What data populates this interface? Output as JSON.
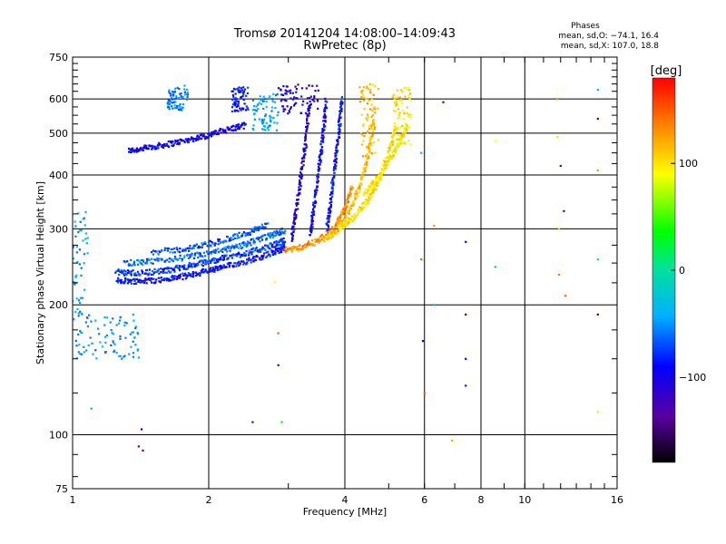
{
  "title": "Tromsø 20141204 14:08:00–14:09:43",
  "subtitle": "RwPretec (8p)",
  "stats": {
    "header": "Phases",
    "line_o": "mean, sd,O: −74.1, 16.4",
    "line_x": "mean, sd,X: 107.0, 18.8"
  },
  "colorbar": {
    "unit_label": "[deg]",
    "tick_labels": [
      "100",
      "0",
      "−100"
    ],
    "tick_values": [
      100,
      0,
      -100
    ],
    "range": [
      -180,
      180
    ]
  },
  "chart_data": {
    "type": "scatter",
    "title": "Tromsø 20141204 14:08:00–14:09:43",
    "subtitle": "RwPretec (8p)",
    "xlabel": "Frequency [MHz]",
    "ylabel": "Stationary phase Virtual Height [km]",
    "x_scale": "log",
    "y_scale": "log",
    "xlim": [
      1,
      16
    ],
    "ylim": [
      75,
      750
    ],
    "x_ticks": [
      1,
      2,
      4,
      6,
      8,
      10,
      16
    ],
    "x_tick_labels": [
      "1",
      "2",
      "4",
      "6",
      "8",
      "10",
      "16"
    ],
    "y_ticks": [
      75,
      100,
      200,
      300,
      400,
      500,
      600,
      750
    ],
    "y_tick_labels": [
      "75",
      "100",
      "200",
      "300",
      "400",
      "500",
      "600",
      "750"
    ],
    "grid": true,
    "color_variable": "phase (deg)",
    "color_range": [
      -180,
      180
    ],
    "traces": [
      {
        "x": [
          1.33,
          1.45,
          1.6,
          1.8,
          2.0,
          2.2,
          2.42
        ],
        "y": [
          455,
          462,
          470,
          482,
          495,
          510,
          522
        ],
        "phase": -98
      },
      {
        "x": [
          1.25,
          1.4,
          1.6,
          1.8,
          2.0,
          2.2,
          2.5,
          2.8,
          2.95
        ],
        "y": [
          228,
          227,
          229,
          234,
          240,
          246,
          255,
          265,
          272
        ],
        "phase": -88
      },
      {
        "x": [
          1.25,
          1.4,
          1.6,
          1.8,
          2.0,
          2.2,
          2.5,
          2.8,
          2.95
        ],
        "y": [
          238,
          237,
          240,
          246,
          252,
          258,
          266,
          276,
          282
        ],
        "phase": -75
      },
      {
        "x": [
          1.3,
          1.5,
          1.8,
          2.1,
          2.4,
          2.7,
          2.95
        ],
        "y": [
          250,
          252,
          258,
          266,
          276,
          288,
          298
        ],
        "phase": -62
      },
      {
        "x": [
          1.5,
          1.8,
          2.1,
          2.4,
          2.7
        ],
        "y": [
          265,
          270,
          280,
          292,
          306
        ],
        "phase": -70
      },
      {
        "x": [
          2.95,
          3.2,
          3.5,
          3.8,
          4.0,
          4.15
        ],
        "y": [
          268,
          272,
          282,
          302,
          335,
          378
        ],
        "phase": 130
      },
      {
        "x": [
          3.6,
          3.85,
          4.1,
          4.3,
          4.5,
          4.65
        ],
        "y": [
          282,
          298,
          330,
          375,
          440,
          540
        ],
        "phase": 112
      },
      {
        "x": [
          3.9,
          4.2,
          4.5,
          4.75,
          5.0,
          5.2
        ],
        "y": [
          300,
          320,
          350,
          390,
          450,
          520
        ],
        "phase": 100
      },
      {
        "x": [
          4.4,
          4.7,
          5.0,
          5.3,
          5.5
        ],
        "y": [
          360,
          390,
          430,
          480,
          520
        ],
        "phase": 95
      },
      {
        "x": [
          3.05,
          3.12,
          3.2,
          3.28,
          3.34
        ],
        "y": [
          285,
          330,
          400,
          480,
          590
        ],
        "phase": -105
      },
      {
        "x": [
          3.35,
          3.42,
          3.5,
          3.58,
          3.64
        ],
        "y": [
          292,
          340,
          410,
          495,
          600
        ],
        "phase": -95
      },
      {
        "x": [
          3.65,
          3.72,
          3.8,
          3.88,
          3.94
        ],
        "y": [
          300,
          350,
          420,
          505,
          605
        ],
        "phase": -88
      }
    ],
    "clusters": [
      {
        "x": [
          1.62,
          1.8
        ],
        "y": [
          565,
          645
        ],
        "phase": -55
      },
      {
        "x": [
          2.25,
          2.45
        ],
        "y": [
          560,
          640
        ],
        "phase": -85
      },
      {
        "x": [
          2.5,
          2.85
        ],
        "y": [
          505,
          620
        ],
        "phase": -45
      },
      {
        "x": [
          2.85,
          3.5
        ],
        "y": [
          555,
          650
        ],
        "phase": -105
      },
      {
        "x": [
          4.3,
          4.75
        ],
        "y": [
          440,
          650
        ],
        "phase": 115
      },
      {
        "x": [
          5.1,
          5.6
        ],
        "y": [
          470,
          640
        ],
        "phase": 100
      },
      {
        "x": [
          1.0,
          1.08
        ],
        "y": [
          150,
          330
        ],
        "phase": -45
      },
      {
        "x": [
          1.08,
          1.4
        ],
        "y": [
          150,
          190
        ],
        "phase": -50
      }
    ],
    "scattered_points": [
      {
        "x": 6.6,
        "y": 590,
        "phase": -110
      },
      {
        "x": 7.4,
        "y": 280,
        "phase": -100
      },
      {
        "x": 7.4,
        "y": 190,
        "phase": -110
      },
      {
        "x": 7.4,
        "y": 150,
        "phase": -100
      },
      {
        "x": 7.4,
        "y": 130,
        "phase": -110
      },
      {
        "x": 8.6,
        "y": 480,
        "phase": 90
      },
      {
        "x": 8.6,
        "y": 245,
        "phase": -40
      },
      {
        "x": 11.8,
        "y": 600,
        "phase": 130
      },
      {
        "x": 11.8,
        "y": 490,
        "phase": 100
      },
      {
        "x": 12.0,
        "y": 420,
        "phase": -120
      },
      {
        "x": 12.2,
        "y": 330,
        "phase": -120
      },
      {
        "x": 11.9,
        "y": 300,
        "phase": 70
      },
      {
        "x": 11.9,
        "y": 235,
        "phase": 140
      },
      {
        "x": 12.3,
        "y": 210,
        "phase": 150
      },
      {
        "x": 14.5,
        "y": 540,
        "phase": -110
      },
      {
        "x": 14.5,
        "y": 410,
        "phase": 130
      },
      {
        "x": 14.5,
        "y": 190,
        "phase": -120
      },
      {
        "x": 14.5,
        "y": 255,
        "phase": 20
      },
      {
        "x": 14.5,
        "y": 630,
        "phase": -40
      },
      {
        "x": 14.5,
        "y": 113,
        "phase": 100
      },
      {
        "x": 1.4,
        "y": 94,
        "phase": -130
      },
      {
        "x": 1.42,
        "y": 103,
        "phase": -100
      },
      {
        "x": 1.43,
        "y": 92,
        "phase": -120
      },
      {
        "x": 2.5,
        "y": 107,
        "phase": -130
      },
      {
        "x": 2.85,
        "y": 145,
        "phase": -120
      },
      {
        "x": 2.85,
        "y": 172,
        "phase": 150
      },
      {
        "x": 2.8,
        "y": 226,
        "phase": 90
      },
      {
        "x": 2.9,
        "y": 107,
        "phase": 30
      },
      {
        "x": 5.9,
        "y": 255,
        "phase": 150
      },
      {
        "x": 5.9,
        "y": 450,
        "phase": -40
      },
      {
        "x": 6.0,
        "y": 125,
        "phase": 150
      },
      {
        "x": 6.3,
        "y": 305,
        "phase": 130
      },
      {
        "x": 6.3,
        "y": 200,
        "phase": -40
      },
      {
        "x": 6.9,
        "y": 97,
        "phase": 120
      },
      {
        "x": 5.95,
        "y": 165,
        "phase": -100
      },
      {
        "x": 1.1,
        "y": 115,
        "phase": -45
      }
    ]
  }
}
